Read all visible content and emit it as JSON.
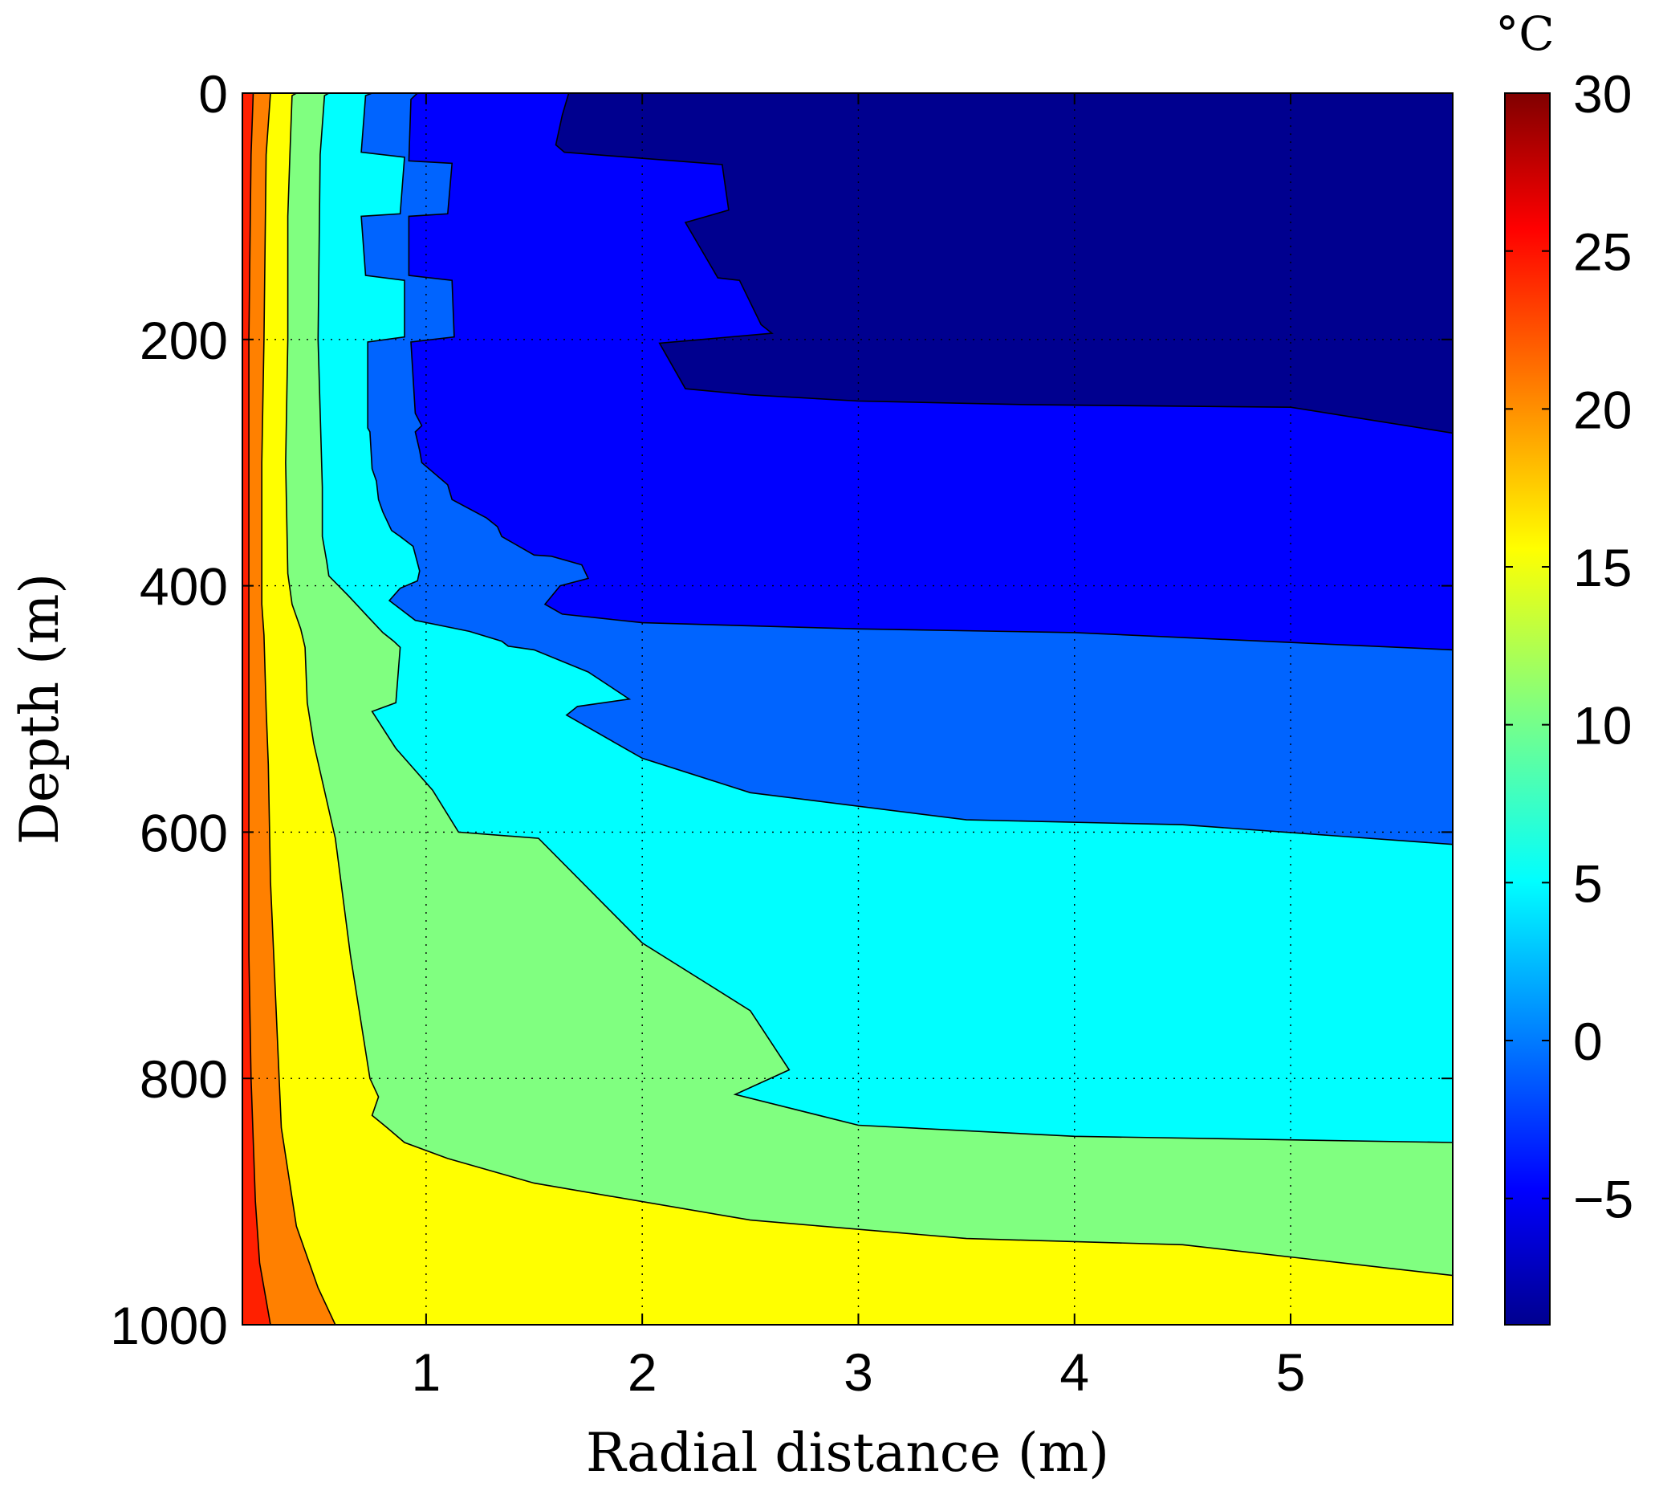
{
  "chart_data": {
    "type": "contour",
    "xlabel": "Radial distance (m)",
    "ylabel": "Depth (m)",
    "colorbar_unit": "°C",
    "xlim": [
      0.15,
      5.75
    ],
    "ylim": [
      0,
      1000
    ],
    "y_reversed": true,
    "grid": true,
    "colormap": "jet",
    "x_ticks": [
      {
        "value": 1,
        "label": "1"
      },
      {
        "value": 2,
        "label": "2"
      },
      {
        "value": 3,
        "label": "3"
      },
      {
        "value": 4,
        "label": "4"
      },
      {
        "value": 5,
        "label": "5"
      }
    ],
    "y_ticks": [
      {
        "value": 0,
        "label": "0"
      },
      {
        "value": 200,
        "label": "200"
      },
      {
        "value": 400,
        "label": "400"
      },
      {
        "value": 600,
        "label": "600"
      },
      {
        "value": 800,
        "label": "800"
      },
      {
        "value": 1000,
        "label": "1000"
      }
    ],
    "colorbar": {
      "range": [
        -9,
        30
      ],
      "ticks": [
        {
          "value": 30,
          "label": "30"
        },
        {
          "value": 25,
          "label": "25"
        },
        {
          "value": 20,
          "label": "20"
        },
        {
          "value": 15,
          "label": "15"
        },
        {
          "value": 10,
          "label": "10"
        },
        {
          "value": 5,
          "label": "5"
        },
        {
          "value": 0,
          "label": "0"
        },
        {
          "value": -5,
          "label": "−5"
        }
      ]
    },
    "background_color": "#00008F",
    "levels": [
      {
        "level": -6,
        "color": "#0000FF",
        "boundary": [
          [
            1.66,
            0
          ],
          [
            1.63,
            18
          ],
          [
            1.6,
            42
          ],
          [
            1.64,
            48
          ],
          [
            2.37,
            58
          ],
          [
            2.4,
            95
          ],
          [
            2.2,
            105
          ],
          [
            2.35,
            150
          ],
          [
            2.45,
            152
          ],
          [
            2.55,
            188
          ],
          [
            2.6,
            195
          ],
          [
            2.08,
            203
          ],
          [
            2.2,
            240
          ],
          [
            2.5,
            245
          ],
          [
            3.0,
            250
          ],
          [
            3.8,
            253
          ],
          [
            5.0,
            255
          ],
          [
            5.75,
            276
          ]
        ]
      },
      {
        "level": -2,
        "color": "#0064FF",
        "boundary": [
          [
            0.96,
            0
          ],
          [
            0.93,
            5
          ],
          [
            0.92,
            55
          ],
          [
            1.12,
            57
          ],
          [
            1.1,
            98
          ],
          [
            0.92,
            100
          ],
          [
            0.92,
            148
          ],
          [
            1.12,
            152
          ],
          [
            1.13,
            198
          ],
          [
            0.93,
            202
          ],
          [
            0.95,
            260
          ],
          [
            0.98,
            270
          ],
          [
            0.95,
            275
          ],
          [
            0.97,
            290
          ],
          [
            0.98,
            300
          ],
          [
            1.1,
            318
          ],
          [
            1.12,
            330
          ],
          [
            1.28,
            345
          ],
          [
            1.33,
            352
          ],
          [
            1.35,
            360
          ],
          [
            1.5,
            375
          ],
          [
            1.58,
            376
          ],
          [
            1.72,
            383
          ],
          [
            1.75,
            394
          ],
          [
            1.62,
            400
          ],
          [
            1.55,
            415
          ],
          [
            1.63,
            423
          ],
          [
            2.0,
            430
          ],
          [
            3.0,
            435
          ],
          [
            4.0,
            438
          ],
          [
            5.75,
            452
          ]
        ]
      },
      {
        "level": 2,
        "color": "#00FFFF",
        "boundary": [
          [
            0.75,
            0
          ],
          [
            0.72,
            2
          ],
          [
            0.7,
            48
          ],
          [
            0.9,
            52
          ],
          [
            0.88,
            98
          ],
          [
            0.7,
            100
          ],
          [
            0.72,
            148
          ],
          [
            0.9,
            152
          ],
          [
            0.9,
            198
          ],
          [
            0.73,
            202
          ],
          [
            0.73,
            272
          ],
          [
            0.74,
            275
          ],
          [
            0.75,
            305
          ],
          [
            0.77,
            315
          ],
          [
            0.78,
            330
          ],
          [
            0.8,
            340
          ],
          [
            0.84,
            355
          ],
          [
            0.88,
            360
          ],
          [
            0.94,
            368
          ],
          [
            0.97,
            388
          ],
          [
            0.96,
            396
          ],
          [
            0.88,
            402
          ],
          [
            0.83,
            412
          ],
          [
            0.95,
            428
          ],
          [
            1.2,
            437
          ],
          [
            1.35,
            445
          ],
          [
            1.38,
            449
          ],
          [
            1.5,
            452
          ],
          [
            1.75,
            470
          ],
          [
            1.94,
            492
          ],
          [
            1.7,
            498
          ],
          [
            1.65,
            505
          ],
          [
            2.0,
            540
          ],
          [
            2.5,
            568
          ],
          [
            3.5,
            590
          ],
          [
            4.5,
            594
          ],
          [
            5.75,
            610
          ]
        ]
      },
      {
        "level": 7,
        "color": "#80FF80",
        "boundary": [
          [
            0.55,
            0
          ],
          [
            0.53,
            2
          ],
          [
            0.51,
            50
          ],
          [
            0.5,
            200
          ],
          [
            0.52,
            320
          ],
          [
            0.52,
            360
          ],
          [
            0.54,
            380
          ],
          [
            0.55,
            392
          ],
          [
            0.64,
            408
          ],
          [
            0.73,
            425
          ],
          [
            0.8,
            438
          ],
          [
            0.85,
            445
          ],
          [
            0.88,
            450
          ],
          [
            0.86,
            495
          ],
          [
            0.75,
            502
          ],
          [
            0.86,
            532
          ],
          [
            1.03,
            566
          ],
          [
            1.15,
            600
          ],
          [
            1.52,
            605
          ],
          [
            2.0,
            690
          ],
          [
            2.5,
            745
          ],
          [
            2.68,
            793
          ],
          [
            2.43,
            813
          ],
          [
            3.0,
            838
          ],
          [
            4.0,
            847
          ],
          [
            5.75,
            852
          ]
        ]
      },
      {
        "level": 12,
        "color": "#FFFF00",
        "boundary": [
          [
            0.4,
            0
          ],
          [
            0.38,
            2
          ],
          [
            0.37,
            50
          ],
          [
            0.36,
            100
          ],
          [
            0.36,
            200
          ],
          [
            0.35,
            300
          ],
          [
            0.36,
            390
          ],
          [
            0.38,
            415
          ],
          [
            0.42,
            435
          ],
          [
            0.44,
            450
          ],
          [
            0.45,
            495
          ],
          [
            0.48,
            528
          ],
          [
            0.58,
            605
          ],
          [
            0.65,
            700
          ],
          [
            0.74,
            800
          ],
          [
            0.78,
            815
          ],
          [
            0.75,
            830
          ],
          [
            0.82,
            840
          ],
          [
            0.9,
            852
          ],
          [
            1.1,
            865
          ],
          [
            1.5,
            885
          ],
          [
            2.5,
            915
          ],
          [
            3.5,
            930
          ],
          [
            4.5,
            935
          ],
          [
            5.75,
            960
          ]
        ]
      },
      {
        "level": 19,
        "color": "#FF8000",
        "boundary": [
          [
            0.28,
            0
          ],
          [
            0.26,
            50
          ],
          [
            0.25,
            200
          ],
          [
            0.24,
            300
          ],
          [
            0.24,
            415
          ],
          [
            0.25,
            440
          ],
          [
            0.26,
            500
          ],
          [
            0.27,
            545
          ],
          [
            0.28,
            640
          ],
          [
            0.3,
            720
          ],
          [
            0.33,
            840
          ],
          [
            0.4,
            920
          ],
          [
            0.5,
            970
          ],
          [
            0.58,
            1000
          ]
        ]
      },
      {
        "level": 24,
        "color": "#FF2000",
        "boundary": [
          [
            0.2,
            0
          ],
          [
            0.19,
            50
          ],
          [
            0.18,
            200
          ],
          [
            0.18,
            500
          ],
          [
            0.18,
            700
          ],
          [
            0.19,
            800
          ],
          [
            0.21,
            900
          ],
          [
            0.23,
            950
          ],
          [
            0.28,
            1000
          ]
        ]
      }
    ]
  }
}
